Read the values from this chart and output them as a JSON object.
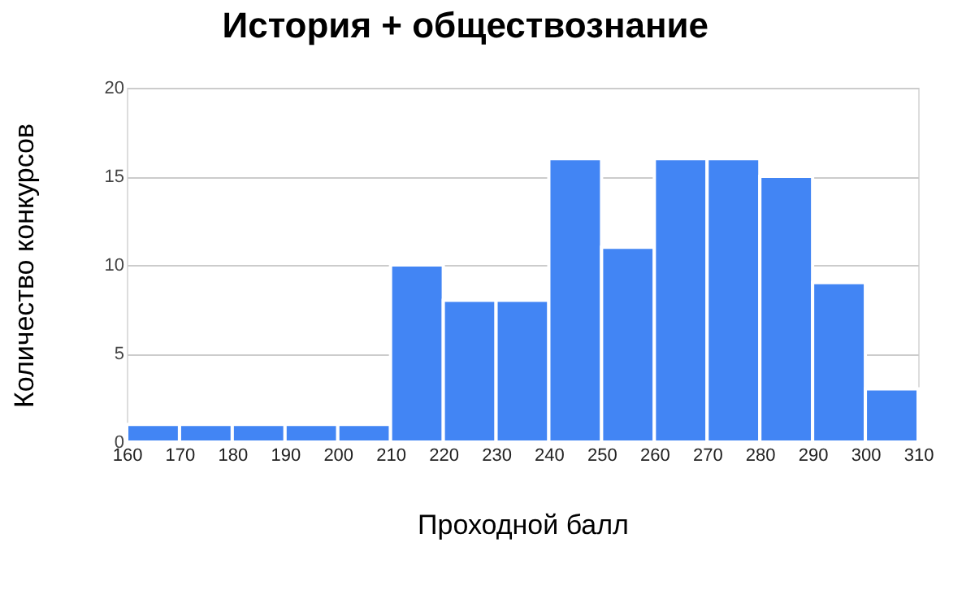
{
  "chart_data": {
    "type": "histogram",
    "title": "История + обществознание",
    "xlabel": "Проходной балл",
    "ylabel": "Количество конкурсов",
    "bins": [
      160,
      170,
      180,
      190,
      200,
      210,
      220,
      230,
      240,
      250,
      260,
      270,
      280,
      290,
      300,
      310
    ],
    "values": [
      1,
      1,
      1,
      1,
      1,
      10,
      8,
      8,
      16,
      11,
      16,
      16,
      15,
      9,
      3
    ],
    "color": "#4285f4",
    "xlim": [
      160,
      310
    ],
    "xticks": [
      160,
      170,
      180,
      190,
      200,
      210,
      220,
      230,
      240,
      250,
      260,
      270,
      280,
      290,
      300,
      310
    ],
    "ylim": [
      0,
      20
    ],
    "yticks": [
      0,
      5,
      10,
      15,
      20
    ],
    "grid": "y"
  }
}
